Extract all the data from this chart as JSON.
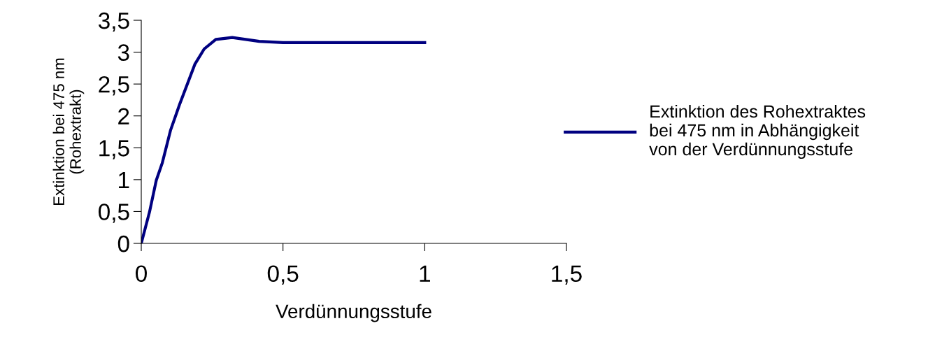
{
  "chart_data": {
    "type": "line",
    "xlabel": "Verdünnungsstufe",
    "ylabel": "Extinktion bei 475 nm\n(Rohextrakt)",
    "series": [
      {
        "name": "Extinktion des Rohextraktes\nbei 475 nm in Abhängigkeit\nvon der Verdünnungsstufe",
        "color": "#000080",
        "x": [
          0,
          0.029,
          0.053,
          0.074,
          0.103,
          0.136,
          0.189,
          0.222,
          0.263,
          0.321,
          0.416,
          0.5,
          1.0
        ],
        "values": [
          0,
          0.49,
          0.99,
          1.26,
          1.77,
          2.19,
          2.81,
          3.05,
          3.2,
          3.23,
          3.17,
          3.15,
          3.15
        ]
      }
    ],
    "xlim": [
      0,
      1.5
    ],
    "xticks": [
      0,
      {
        "value": 0.5,
        "label": "0,5"
      },
      1,
      {
        "value": 1.5,
        "label": "1,5"
      }
    ],
    "ylim": [
      0,
      3.5
    ],
    "yticks": [
      0,
      {
        "value": 0.5,
        "label": "0,5"
      },
      1,
      {
        "value": 1.5,
        "label": "1,5"
      },
      2,
      {
        "value": 2.5,
        "label": "2,5"
      },
      3,
      {
        "value": 3.5,
        "label": "3,5"
      }
    ],
    "grid": false,
    "legend": "right",
    "marker": "none",
    "line_style": "solid"
  }
}
